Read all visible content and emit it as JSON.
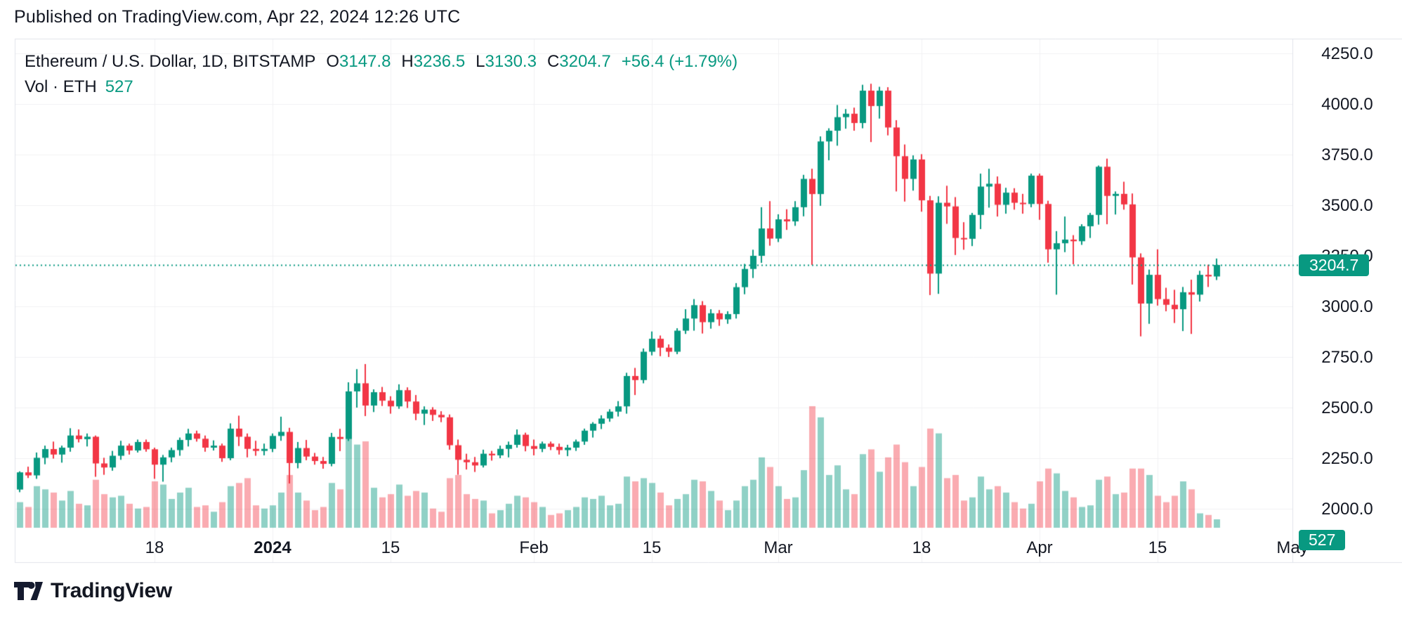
{
  "header": {
    "published_note": "Published on TradingView.com, Apr 22, 2024 12:26 UTC"
  },
  "legend": {
    "symbol_title": "Ethereum / U.S. Dollar, 1D, BITSTAMP",
    "o_label": "O",
    "o_value": "3147.8",
    "h_label": "H",
    "h_value": "3236.5",
    "l_label": "L",
    "l_value": "3130.3",
    "c_label": "C",
    "c_value": "3204.7",
    "change": "+56.4 (+1.79%)",
    "vol_label": "Vol · ETH",
    "vol_value": "527"
  },
  "price_axis": {
    "ticks": [
      {
        "label": "4250.0",
        "price": 4250
      },
      {
        "label": "4000.0",
        "price": 4000
      },
      {
        "label": "3750.0",
        "price": 3750
      },
      {
        "label": "3500.0",
        "price": 3500
      },
      {
        "label": "3250.0",
        "price": 3250
      },
      {
        "label": "3000.0",
        "price": 3000
      },
      {
        "label": "2750.0",
        "price": 2750
      },
      {
        "label": "2500.0",
        "price": 2500
      },
      {
        "label": "2250.0",
        "price": 2250
      },
      {
        "label": "2000.0",
        "price": 2000
      }
    ],
    "last_price_badge": "3204.7",
    "volume_badge": "527"
  },
  "time_axis": {
    "ticks": [
      {
        "label": "18",
        "date": "2023-12-18",
        "bold": false
      },
      {
        "label": "2024",
        "date": "2024-01-01",
        "bold": true
      },
      {
        "label": "15",
        "date": "2024-01-15",
        "bold": false
      },
      {
        "label": "Feb",
        "date": "2024-02-01",
        "bold": false
      },
      {
        "label": "15",
        "date": "2024-02-15",
        "bold": false
      },
      {
        "label": "Mar",
        "date": "2024-03-01",
        "bold": false
      },
      {
        "label": "18",
        "date": "2024-03-18",
        "bold": false
      },
      {
        "label": "Apr",
        "date": "2024-04-01",
        "bold": false
      },
      {
        "label": "15",
        "date": "2024-04-15",
        "bold": false
      },
      {
        "label": "May",
        "date": "2024-05-01",
        "bold": false
      }
    ]
  },
  "footer": {
    "brand": "TradingView"
  },
  "colors": {
    "up": "#089981",
    "down": "#F23645",
    "vol_up": "rgba(8,153,129,0.45)",
    "vol_down": "rgba(242,54,69,0.42)",
    "grid": "#f0f1f3",
    "border": "#e0e3eb",
    "text": "#131722",
    "badge_bg": "#089981"
  },
  "chart_data": {
    "type": "candlestick",
    "title": "Ethereum / U.S. Dollar",
    "interval": "1D",
    "exchange": "BITSTAMP",
    "price_line": 3204.7,
    "ylim": [
      1930,
      4330
    ],
    "y_gridline_step": 250,
    "legend_ohlc": {
      "open": 3147.8,
      "high": 3236.5,
      "low": 3130.3,
      "close": 3204.7,
      "change": 56.4,
      "change_pct": 1.79,
      "volume": 527
    },
    "candles": [
      [
        "2023-12-02",
        2095,
        2185,
        2082,
        2180,
        1600
      ],
      [
        "2023-12-03",
        2180,
        2208,
        2152,
        2165,
        1300
      ],
      [
        "2023-12-04",
        2165,
        2278,
        2148,
        2252,
        2600
      ],
      [
        "2023-12-05",
        2252,
        2312,
        2220,
        2295,
        2400
      ],
      [
        "2023-12-06",
        2295,
        2332,
        2248,
        2268,
        2200
      ],
      [
        "2023-12-07",
        2268,
        2312,
        2228,
        2302,
        1700
      ],
      [
        "2023-12-08",
        2302,
        2398,
        2282,
        2362,
        2300
      ],
      [
        "2023-12-09",
        2362,
        2392,
        2328,
        2344,
        1500
      ],
      [
        "2023-12-10",
        2344,
        2372,
        2308,
        2356,
        1400
      ],
      [
        "2023-12-11",
        2356,
        2362,
        2158,
        2224,
        3000
      ],
      [
        "2023-12-12",
        2224,
        2252,
        2168,
        2204,
        2100
      ],
      [
        "2023-12-13",
        2204,
        2286,
        2188,
        2262,
        1900
      ],
      [
        "2023-12-14",
        2262,
        2336,
        2242,
        2312,
        2000
      ],
      [
        "2023-12-15",
        2312,
        2322,
        2268,
        2288,
        1500
      ],
      [
        "2023-12-16",
        2288,
        2342,
        2278,
        2330,
        1200
      ],
      [
        "2023-12-17",
        2330,
        2342,
        2282,
        2294,
        1300
      ],
      [
        "2023-12-18",
        2294,
        2302,
        2148,
        2218,
        2900
      ],
      [
        "2023-12-19",
        2218,
        2266,
        2134,
        2254,
        2700
      ],
      [
        "2023-12-20",
        2254,
        2302,
        2230,
        2290,
        1800
      ],
      [
        "2023-12-21",
        2290,
        2352,
        2262,
        2340,
        2200
      ],
      [
        "2023-12-22",
        2340,
        2395,
        2308,
        2372,
        2500
      ],
      [
        "2023-12-23",
        2372,
        2386,
        2332,
        2346,
        1300
      ],
      [
        "2023-12-24",
        2346,
        2362,
        2282,
        2302,
        1400
      ],
      [
        "2023-12-25",
        2302,
        2338,
        2288,
        2312,
        1000
      ],
      [
        "2023-12-26",
        2312,
        2322,
        2232,
        2250,
        1600
      ],
      [
        "2023-12-27",
        2250,
        2422,
        2240,
        2396,
        2600
      ],
      [
        "2023-12-28",
        2396,
        2460,
        2310,
        2356,
        2800
      ],
      [
        "2023-12-29",
        2356,
        2372,
        2254,
        2296,
        3100
      ],
      [
        "2023-12-30",
        2296,
        2336,
        2262,
        2286,
        1400
      ],
      [
        "2023-12-31",
        2286,
        2322,
        2264,
        2296,
        1200
      ],
      [
        "2024-01-01",
        2296,
        2372,
        2280,
        2360,
        1400
      ],
      [
        "2024-01-02",
        2360,
        2455,
        2336,
        2380,
        2200
      ],
      [
        "2024-01-03",
        2380,
        2400,
        2125,
        2226,
        3300
      ],
      [
        "2024-01-04",
        2226,
        2330,
        2200,
        2300,
        2200
      ],
      [
        "2024-01-05",
        2300,
        2340,
        2240,
        2258,
        1700
      ],
      [
        "2024-01-06",
        2258,
        2276,
        2218,
        2236,
        1100
      ],
      [
        "2024-01-07",
        2236,
        2256,
        2198,
        2222,
        1300
      ],
      [
        "2024-01-08",
        2222,
        2375,
        2210,
        2355,
        2800
      ],
      [
        "2024-01-09",
        2355,
        2395,
        2285,
        2345,
        2400
      ],
      [
        "2024-01-10",
        2345,
        2625,
        2335,
        2580,
        5600
      ],
      [
        "2024-01-11",
        2580,
        2690,
        2500,
        2620,
        5200
      ],
      [
        "2024-01-12",
        2620,
        2715,
        2458,
        2510,
        5400
      ],
      [
        "2024-01-13",
        2510,
        2590,
        2478,
        2576,
        2500
      ],
      [
        "2024-01-14",
        2576,
        2602,
        2508,
        2534,
        1900
      ],
      [
        "2024-01-15",
        2534,
        2556,
        2470,
        2506,
        2100
      ],
      [
        "2024-01-16",
        2506,
        2615,
        2494,
        2586,
        2700
      ],
      [
        "2024-01-17",
        2586,
        2600,
        2498,
        2530,
        2000
      ],
      [
        "2024-01-18",
        2530,
        2562,
        2438,
        2470,
        2300
      ],
      [
        "2024-01-19",
        2470,
        2506,
        2414,
        2490,
        2200
      ],
      [
        "2024-01-20",
        2490,
        2502,
        2434,
        2464,
        1200
      ],
      [
        "2024-01-21",
        2464,
        2482,
        2428,
        2452,
        1000
      ],
      [
        "2024-01-22",
        2452,
        2466,
        2292,
        2314,
        3100
      ],
      [
        "2024-01-23",
        2314,
        2342,
        2168,
        2242,
        3300
      ],
      [
        "2024-01-24",
        2242,
        2272,
        2194,
        2230,
        2100
      ],
      [
        "2024-01-25",
        2230,
        2256,
        2182,
        2214,
        1800
      ],
      [
        "2024-01-26",
        2214,
        2292,
        2204,
        2272,
        1700
      ],
      [
        "2024-01-27",
        2272,
        2286,
        2238,
        2264,
        900
      ],
      [
        "2024-01-28",
        2264,
        2312,
        2250,
        2296,
        1100
      ],
      [
        "2024-01-29",
        2296,
        2332,
        2254,
        2316,
        1500
      ],
      [
        "2024-01-30",
        2316,
        2392,
        2302,
        2366,
        2000
      ],
      [
        "2024-01-31",
        2366,
        2376,
        2284,
        2310,
        1900
      ],
      [
        "2024-02-01",
        2310,
        2342,
        2264,
        2296,
        1600
      ],
      [
        "2024-02-02",
        2296,
        2332,
        2280,
        2322,
        1300
      ],
      [
        "2024-02-03",
        2322,
        2332,
        2290,
        2306,
        800
      ],
      [
        "2024-02-04",
        2306,
        2322,
        2268,
        2290,
        900
      ],
      [
        "2024-02-05",
        2290,
        2316,
        2260,
        2302,
        1100
      ],
      [
        "2024-02-06",
        2302,
        2342,
        2286,
        2332,
        1300
      ],
      [
        "2024-02-07",
        2332,
        2396,
        2316,
        2386,
        1900
      ],
      [
        "2024-02-08",
        2386,
        2428,
        2352,
        2420,
        1800
      ],
      [
        "2024-02-09",
        2420,
        2462,
        2394,
        2446,
        2000
      ],
      [
        "2024-02-10",
        2446,
        2492,
        2430,
        2480,
        1400
      ],
      [
        "2024-02-11",
        2480,
        2532,
        2456,
        2506,
        1500
      ],
      [
        "2024-02-12",
        2506,
        2672,
        2470,
        2656,
        3200
      ],
      [
        "2024-02-13",
        2656,
        2696,
        2562,
        2636,
        2900
      ],
      [
        "2024-02-14",
        2636,
        2792,
        2620,
        2776,
        3100
      ],
      [
        "2024-02-15",
        2776,
        2876,
        2758,
        2840,
        2800
      ],
      [
        "2024-02-16",
        2840,
        2856,
        2754,
        2796,
        2200
      ],
      [
        "2024-02-17",
        2796,
        2812,
        2750,
        2776,
        1400
      ],
      [
        "2024-02-18",
        2776,
        2892,
        2764,
        2880,
        1800
      ],
      [
        "2024-02-19",
        2880,
        2986,
        2864,
        2940,
        2100
      ],
      [
        "2024-02-20",
        2940,
        3036,
        2880,
        3006,
        3000
      ],
      [
        "2024-02-21",
        3006,
        3026,
        2866,
        2922,
        2900
      ],
      [
        "2024-02-22",
        2922,
        2986,
        2890,
        2966,
        2300
      ],
      [
        "2024-02-23",
        2966,
        2982,
        2904,
        2936,
        1700
      ],
      [
        "2024-02-24",
        2936,
        2976,
        2914,
        2962,
        1100
      ],
      [
        "2024-02-25",
        2962,
        3115,
        2940,
        3095,
        1700
      ],
      [
        "2024-02-26",
        3095,
        3210,
        3060,
        3185,
        2600
      ],
      [
        "2024-02-27",
        3185,
        3280,
        3140,
        3250,
        3000
      ],
      [
        "2024-02-28",
        3250,
        3490,
        3215,
        3385,
        4400
      ],
      [
        "2024-02-29",
        3385,
        3520,
        3300,
        3335,
        3800
      ],
      [
        "2024-03-01",
        3335,
        3455,
        3318,
        3430,
        2600
      ],
      [
        "2024-03-02",
        3430,
        3480,
        3378,
        3420,
        1800
      ],
      [
        "2024-03-03",
        3420,
        3520,
        3398,
        3490,
        1900
      ],
      [
        "2024-03-04",
        3490,
        3650,
        3445,
        3630,
        3600
      ],
      [
        "2024-03-05",
        3630,
        3680,
        3205,
        3555,
        7600
      ],
      [
        "2024-03-06",
        3555,
        3840,
        3497,
        3815,
        6900
      ],
      [
        "2024-03-07",
        3815,
        3880,
        3722,
        3868,
        3300
      ],
      [
        "2024-03-08",
        3868,
        3995,
        3794,
        3935,
        3900
      ],
      [
        "2024-03-09",
        3935,
        3975,
        3878,
        3952,
        2400
      ],
      [
        "2024-03-10",
        3952,
        3982,
        3868,
        3906,
        2100
      ],
      [
        "2024-03-11",
        3906,
        4095,
        3880,
        4066,
        4600
      ],
      [
        "2024-03-12",
        4066,
        4100,
        3812,
        3990,
        4900
      ],
      [
        "2024-03-13",
        3990,
        4085,
        3928,
        4066,
        3500
      ],
      [
        "2024-03-14",
        4066,
        4083,
        3845,
        3884,
        4400
      ],
      [
        "2024-03-15",
        3884,
        3920,
        3568,
        3742,
        5200
      ],
      [
        "2024-03-16",
        3742,
        3800,
        3518,
        3630,
        4100
      ],
      [
        "2024-03-17",
        3630,
        3746,
        3572,
        3726,
        2600
      ],
      [
        "2024-03-18",
        3726,
        3752,
        3468,
        3524,
        3800
      ],
      [
        "2024-03-19",
        3524,
        3546,
        3056,
        3162,
        6200
      ],
      [
        "2024-03-20",
        3162,
        3544,
        3062,
        3512,
        5900
      ],
      [
        "2024-03-21",
        3512,
        3596,
        3408,
        3494,
        3100
      ],
      [
        "2024-03-22",
        3494,
        3540,
        3254,
        3338,
        3300
      ],
      [
        "2024-03-23",
        3338,
        3416,
        3280,
        3334,
        1700
      ],
      [
        "2024-03-24",
        3334,
        3462,
        3298,
        3452,
        1900
      ],
      [
        "2024-03-25",
        3452,
        3656,
        3382,
        3592,
        3200
      ],
      [
        "2024-03-26",
        3592,
        3680,
        3488,
        3606,
        2400
      ],
      [
        "2024-03-27",
        3606,
        3642,
        3444,
        3502,
        2600
      ],
      [
        "2024-03-28",
        3502,
        3586,
        3458,
        3562,
        2200
      ],
      [
        "2024-03-29",
        3562,
        3584,
        3478,
        3512,
        1600
      ],
      [
        "2024-03-30",
        3512,
        3556,
        3458,
        3506,
        1200
      ],
      [
        "2024-03-31",
        3506,
        3656,
        3490,
        3646,
        1500
      ],
      [
        "2024-04-01",
        3646,
        3656,
        3428,
        3506,
        2900
      ],
      [
        "2024-04-02",
        3506,
        3522,
        3216,
        3282,
        3700
      ],
      [
        "2024-04-03",
        3282,
        3372,
        3058,
        3312,
        3400
      ],
      [
        "2024-04-04",
        3312,
        3444,
        3268,
        3330,
        2300
      ],
      [
        "2024-04-05",
        3330,
        3352,
        3208,
        3322,
        1900
      ],
      [
        "2024-04-06",
        3322,
        3406,
        3304,
        3396,
        1300
      ],
      [
        "2024-04-07",
        3396,
        3462,
        3338,
        3452,
        1400
      ],
      [
        "2024-04-08",
        3452,
        3696,
        3404,
        3690,
        3000
      ],
      [
        "2024-04-09",
        3690,
        3730,
        3406,
        3546,
        3200
      ],
      [
        "2024-04-10",
        3546,
        3568,
        3454,
        3556,
        2100
      ],
      [
        "2024-04-11",
        3556,
        3616,
        3478,
        3504,
        2200
      ],
      [
        "2024-04-12",
        3504,
        3558,
        3108,
        3242,
        3700
      ],
      [
        "2024-04-13",
        3242,
        3262,
        2852,
        3014,
        3700
      ],
      [
        "2024-04-14",
        3014,
        3182,
        2914,
        3156,
        3300
      ],
      [
        "2024-04-15",
        3156,
        3282,
        3004,
        3036,
        2000
      ],
      [
        "2024-04-16",
        3036,
        3092,
        2976,
        3008,
        1600
      ],
      [
        "2024-04-17",
        3008,
        3082,
        2918,
        2986,
        2000
      ],
      [
        "2024-04-18",
        2986,
        3096,
        2878,
        3070,
        2900
      ],
      [
        "2024-04-19",
        3070,
        3132,
        2864,
        3058,
        2400
      ],
      [
        "2024-04-20",
        3058,
        3176,
        3024,
        3156,
        900
      ],
      [
        "2024-04-21",
        3156,
        3206,
        3096,
        3148,
        800
      ],
      [
        "2024-04-22",
        3147.8,
        3236.5,
        3130.3,
        3204.7,
        527
      ]
    ]
  }
}
